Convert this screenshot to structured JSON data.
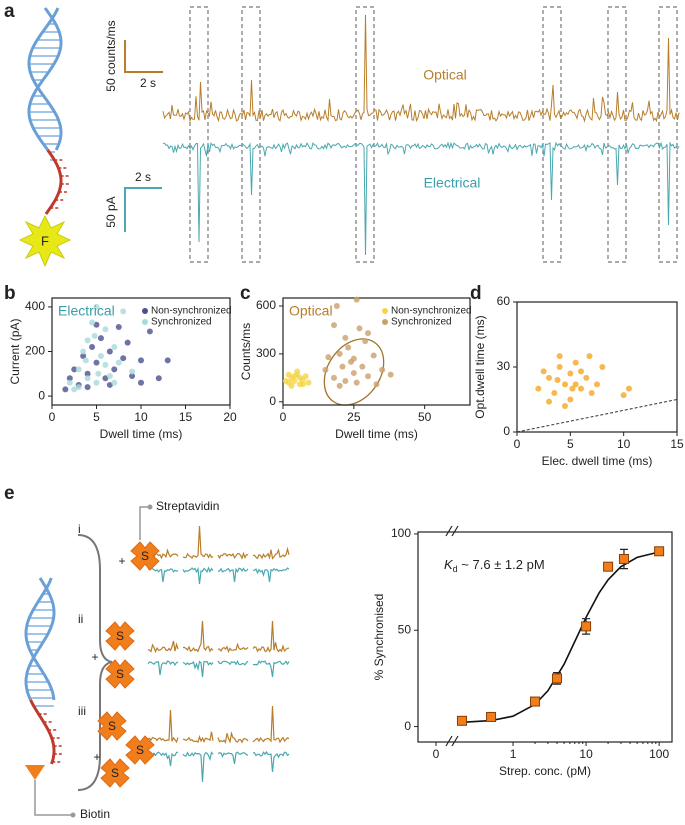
{
  "panel_labels": [
    "a",
    "b",
    "c",
    "d",
    "e"
  ],
  "panel_a": {
    "optical_scale": {
      "y": "50 counts/ms",
      "x": "2 s"
    },
    "electrical_scale": {
      "x": "2 s",
      "y": "50 pA"
    },
    "optical_label": "Optical",
    "electrical_label": "Electrical",
    "fluorophore": "F"
  },
  "schematic_e": {
    "protein": "Streptavidin",
    "ligand": "Biotin",
    "rows": [
      "i",
      "ii",
      "iii"
    ],
    "protein_symbol": "S",
    "plus": "+"
  },
  "chart_data": [
    {
      "type": "scatter",
      "annotation": "Electrical",
      "annotation_color": "#3a9ea8",
      "xlabel": "Dwell time (ms)",
      "ylabel": "Current (pA)",
      "xlim": [
        0,
        20
      ],
      "xticks": [
        0,
        5,
        10,
        15,
        20
      ],
      "ylim": [
        -40,
        440
      ],
      "yticks": [
        0,
        200,
        400
      ],
      "legend": "upper right",
      "series": [
        {
          "name": "Non-synchronized",
          "color": "#4b4f8f",
          "x": [
            1.5,
            2,
            2.5,
            3,
            3.5,
            4,
            4.5,
            5,
            5.5,
            6,
            6.5,
            7,
            7.5,
            8,
            9,
            10,
            11,
            12,
            13,
            8.5,
            4,
            5,
            6.5,
            10
          ],
          "values": [
            30,
            80,
            120,
            50,
            180,
            100,
            220,
            150,
            260,
            80,
            200,
            120,
            310,
            170,
            90,
            160,
            290,
            80,
            160,
            240,
            40,
            320,
            50,
            60
          ]
        },
        {
          "name": "Synchronized",
          "color": "#a9d9d9",
          "x": [
            2,
            3,
            3.5,
            4,
            4.5,
            5,
            5.5,
            6,
            6.5,
            7,
            7.5,
            8,
            3,
            4,
            5,
            2.5,
            6,
            9,
            4.8,
            3.8,
            7,
            5.2
          ],
          "values": [
            60,
            120,
            200,
            250,
            330,
            400,
            180,
            300,
            90,
            220,
            150,
            380,
            40,
            80,
            60,
            30,
            140,
            110,
            270,
            160,
            60,
            100
          ]
        }
      ]
    },
    {
      "type": "scatter",
      "annotation": "Optical",
      "annotation_color": "#b87d2a",
      "xlabel": "Dwell time (ms)",
      "ylabel": "Counts/ms",
      "xlim": [
        0,
        66
      ],
      "xticks": [
        0,
        25,
        50
      ],
      "ylim": [
        -20,
        650
      ],
      "yticks": [
        0,
        300,
        600
      ],
      "legend": "upper right",
      "series": [
        {
          "name": "Non-synchronized",
          "color": "#f5d547",
          "x": [
            2,
            3,
            4,
            5,
            6,
            7,
            8,
            3,
            5,
            1,
            4,
            6,
            2,
            9,
            7
          ],
          "values": [
            120,
            150,
            130,
            170,
            110,
            140,
            160,
            100,
            190,
            130,
            160,
            150,
            170,
            120,
            110
          ]
        },
        {
          "name": "Synchronized",
          "color": "#c9a06c",
          "x": [
            15,
            18,
            20,
            22,
            24,
            25,
            26,
            28,
            30,
            32,
            35,
            20,
            23,
            27,
            19,
            26,
            30,
            16,
            22,
            25,
            33,
            38,
            29,
            18,
            21
          ],
          "values": [
            200,
            150,
            300,
            400,
            250,
            180,
            120,
            220,
            160,
            290,
            200,
            100,
            340,
            460,
            600,
            640,
            430,
            280,
            130,
            270,
            110,
            170,
            380,
            480,
            220
          ]
        }
      ]
    },
    {
      "type": "scatter",
      "xlabel": "Elec. dwell time (ms)",
      "ylabel": "Opt.dwell time (ms)",
      "xlim": [
        0,
        15
      ],
      "xticks": [
        0,
        5,
        10,
        15
      ],
      "ylim": [
        0,
        60
      ],
      "yticks": [
        0,
        30,
        60
      ],
      "identity_line": true,
      "series": [
        {
          "color": "#f5a623",
          "x": [
            2,
            3,
            3.5,
            4,
            4.5,
            5,
            5,
            5.5,
            6,
            6.5,
            7,
            3,
            4,
            5.5,
            6,
            4.5,
            3.8,
            2.5,
            7.5,
            10.5,
            10,
            8,
            6.8,
            5.2
          ],
          "values": [
            20,
            25,
            18,
            30,
            22,
            27,
            15,
            32,
            20,
            25,
            18,
            14,
            35,
            22,
            28,
            12,
            24,
            28,
            22,
            20,
            17,
            30,
            35,
            20
          ]
        }
      ]
    },
    {
      "type": "scatter",
      "xscale": "log",
      "xlabel": "Strep. conc. (pM)",
      "ylabel": "% Synchronised",
      "xlim": [
        0.05,
        150
      ],
      "xticks": [
        1,
        10,
        100
      ],
      "x_break_tick": 0,
      "ylim": [
        -8,
        101
      ],
      "yticks": [
        0,
        50,
        100
      ],
      "annotation": {
        "symbol": "K",
        "subscript": "d",
        "text": " ~ 7.6 ± 1.2 pM"
      },
      "series": [
        {
          "color": "#f07e1c",
          "x": [
            0.2,
            0.5,
            2,
            4,
            10,
            20,
            33,
            100
          ],
          "values": [
            3,
            5,
            13,
            25,
            52,
            83,
            87,
            91
          ],
          "errors": [
            2,
            2,
            2,
            3,
            4,
            2,
            5,
            2
          ]
        }
      ],
      "fit": {
        "x": [
          0.2,
          0.5,
          1,
          2,
          3,
          5,
          7.6,
          10,
          15,
          20,
          30,
          50,
          100
        ],
        "values": [
          2.2,
          3.1,
          5.4,
          11.5,
          18.6,
          32.4,
          47,
          56.7,
          69.3,
          76.2,
          83,
          87.8,
          90.6
        ]
      }
    }
  ]
}
